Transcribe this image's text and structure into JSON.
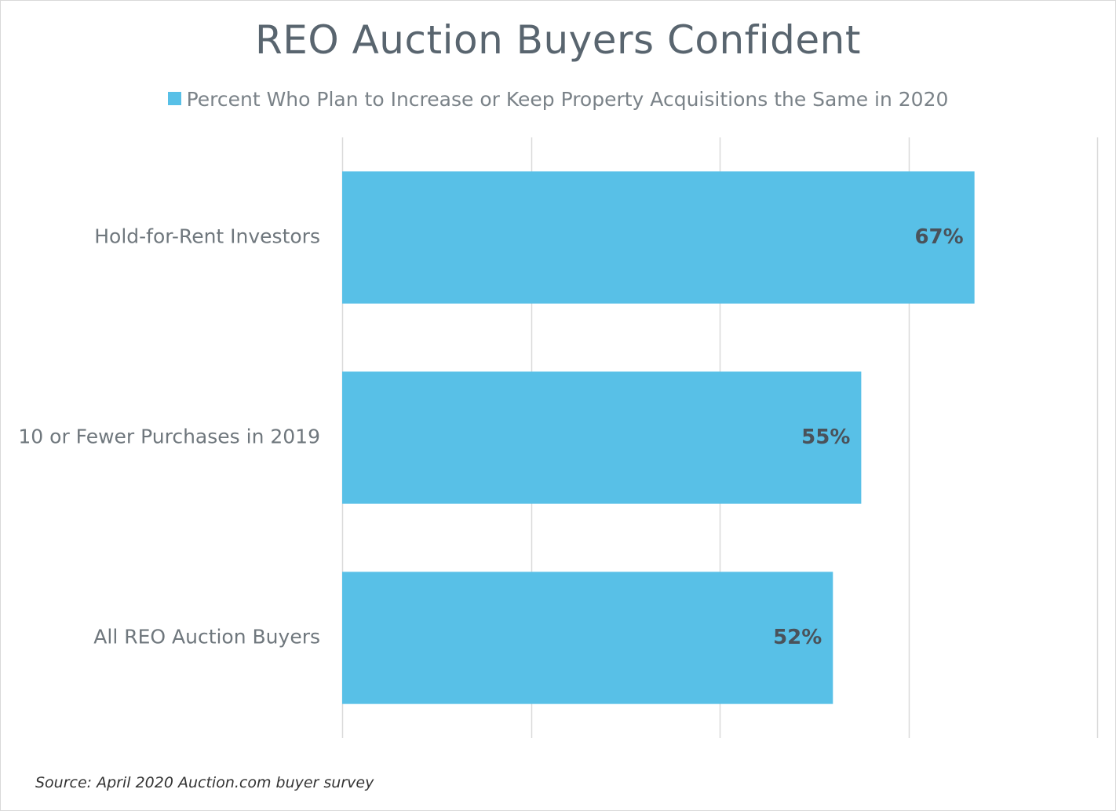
{
  "chart_data": {
    "type": "bar",
    "orientation": "horizontal",
    "title": "REO Auction Buyers Confident",
    "categories": [
      "Hold-for-Rent Investors",
      "10 or Fewer Purchases in 2019",
      "All REO Auction Buyers"
    ],
    "series": [
      {
        "name": "Percent Who Plan to Increase or Keep Property Acquisitions the Same in 2020",
        "values": [
          67,
          55,
          52
        ],
        "labels": [
          "67%",
          "55%",
          "52%"
        ],
        "color": "#58c0e7"
      }
    ],
    "xlim": [
      0,
      80
    ],
    "grid": true,
    "legend_position": "top"
  },
  "source": "Source: April 2020 Auction.com buyer survey"
}
